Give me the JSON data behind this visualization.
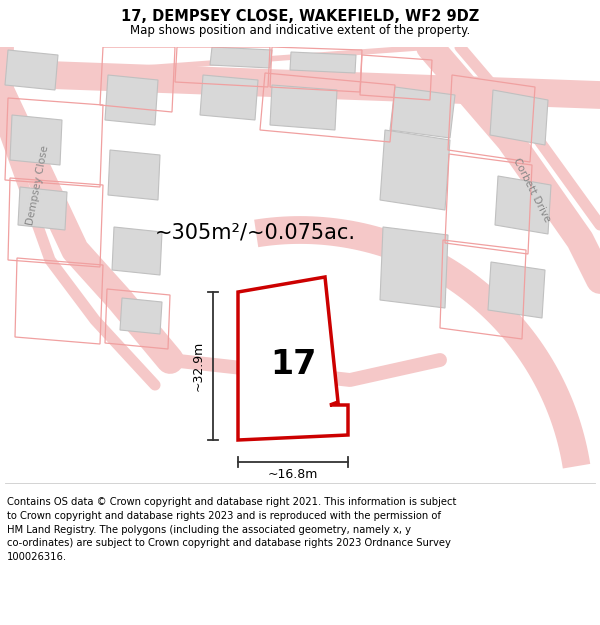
{
  "title": "17, DEMPSEY CLOSE, WAKEFIELD, WF2 9DZ",
  "subtitle": "Map shows position and indicative extent of the property.",
  "footer": "Contains OS data © Crown copyright and database right 2021. This information is subject to Crown copyright and database rights 2023 and is reproduced with the permission of HM Land Registry. The polygons (including the associated geometry, namely x, y co-ordinates) are subject to Crown copyright and database rights 2023 Ordnance Survey 100026316.",
  "area_label": "~305m²/~0.075ac.",
  "width_label": "~16.8m",
  "height_label": "~32.9m",
  "number_label": "17",
  "highlight_color": "#cc0000",
  "road_color": "#f5c8c8",
  "building_fill": "#d8d8d8",
  "building_stroke": "#c0c0c0",
  "outline_color": "#f0a0a0",
  "dim_line_color": "#333333",
  "street_color": "#888888",
  "white": "#ffffff",
  "black": "#000000",
  "title_fontsize": 10.5,
  "subtitle_fontsize": 8.5,
  "footer_fontsize": 7.2,
  "area_fontsize": 15,
  "dim_fontsize": 9,
  "number_fontsize": 24
}
